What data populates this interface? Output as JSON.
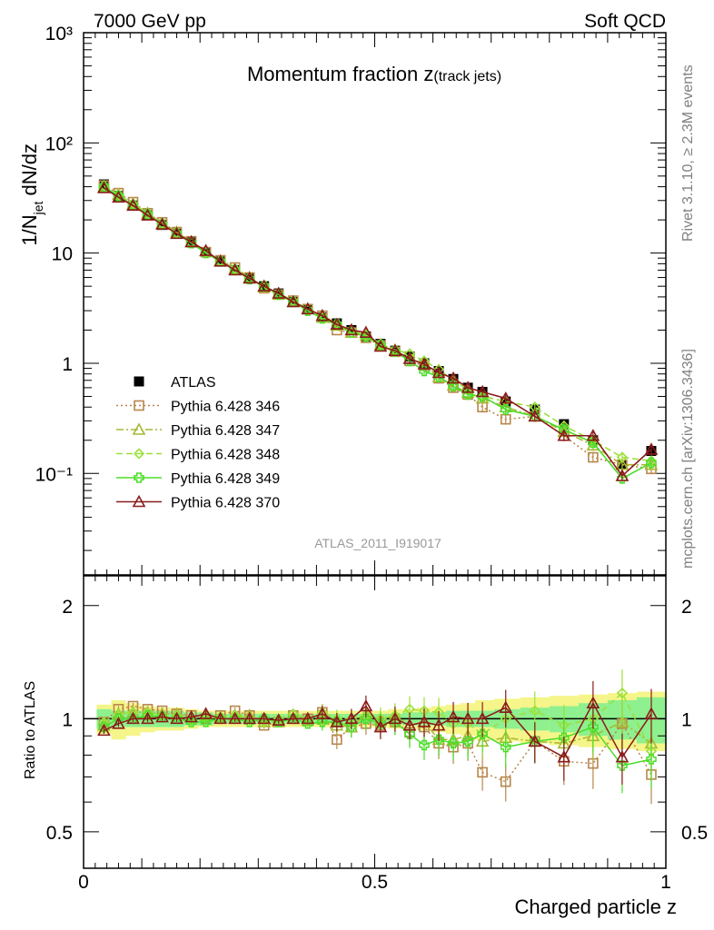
{
  "header": {
    "energy_label": "7000 GeV pp",
    "process_label": "Soft QCD",
    "title_main": "Momentum fraction ",
    "title_var": "z",
    "title_sub": "(track jets)",
    "side_rivet": "Rivet 3.1.10, ≥ 2.3M events",
    "side_source": "mcplots.cern.ch [arXiv:1306.3436]",
    "analysis_id": "ATLAS_2011_I919017"
  },
  "chart_data": [
    {
      "type": "scatter",
      "panel": "main",
      "ylabel": "1/N_jet dN/dz",
      "ylabel_parts": {
        "base": "1/N",
        "sub": "jet",
        "tail": " dN/dz"
      },
      "log_y": true,
      "xlim": [
        0,
        1
      ],
      "ylim": [
        0.012,
        1000
      ],
      "y_tick_labels": [
        "10⁻¹",
        "1",
        "10",
        "10²",
        "10³"
      ],
      "legend_position": "left-middle",
      "x": [
        0.035,
        0.06,
        0.085,
        0.11,
        0.135,
        0.16,
        0.185,
        0.21,
        0.235,
        0.26,
        0.285,
        0.31,
        0.335,
        0.36,
        0.385,
        0.41,
        0.435,
        0.46,
        0.485,
        0.51,
        0.535,
        0.56,
        0.585,
        0.61,
        0.635,
        0.66,
        0.685,
        0.725,
        0.775,
        0.825,
        0.875,
        0.925,
        0.975
      ],
      "series": [
        {
          "name": "ATLAS",
          "color": "#000000",
          "marker": "square-filled",
          "line": "none",
          "values": [
            42,
            33,
            27,
            22,
            18,
            15,
            12.5,
            10.2,
            8.4,
            7.0,
            5.9,
            5.0,
            4.3,
            3.6,
            3.1,
            2.6,
            2.3,
            2.0,
            1.75,
            1.5,
            1.3,
            1.15,
            1.0,
            0.85,
            0.72,
            0.6,
            0.55,
            0.45,
            0.38,
            0.28,
            0.2,
            0.12,
            0.16
          ]
        },
        {
          "name": "Pythia 6.428 346",
          "color": "#b8864b",
          "marker": "square-open",
          "line": "dotted",
          "values": [
            41,
            35,
            29,
            23,
            19,
            15.5,
            12.8,
            10.2,
            8.6,
            7.4,
            6.0,
            4.8,
            4.2,
            3.7,
            3.1,
            2.7,
            2.0,
            1.9,
            1.7,
            1.45,
            1.27,
            1.05,
            0.95,
            0.73,
            0.6,
            0.52,
            0.4,
            0.31,
            0.33,
            0.22,
            0.14,
            0.12,
            0.11
          ]
        },
        {
          "name": "Pythia 6.428 347",
          "color": "#a8b832",
          "marker": "triangle-open",
          "line": "dashdot",
          "values": [
            40,
            34,
            28,
            23,
            18.5,
            15.5,
            12.6,
            10.4,
            8.5,
            7.2,
            6.0,
            4.9,
            4.2,
            3.6,
            3.1,
            2.6,
            2.2,
            1.9,
            1.8,
            1.48,
            1.32,
            1.1,
            0.98,
            0.75,
            0.63,
            0.54,
            0.48,
            0.4,
            0.33,
            0.24,
            0.18,
            0.12,
            0.12
          ]
        },
        {
          "name": "Pythia 6.428 348",
          "color": "#9ce03c",
          "marker": "diamond-open",
          "line": "dashed",
          "values": [
            41,
            34,
            28,
            23,
            18.5,
            15.3,
            12.4,
            10.2,
            8.5,
            7.2,
            5.9,
            4.9,
            4.3,
            3.7,
            3.1,
            2.7,
            2.3,
            2.0,
            1.8,
            1.5,
            1.32,
            1.22,
            1.05,
            0.88,
            0.7,
            0.58,
            0.5,
            0.45,
            0.4,
            0.27,
            0.2,
            0.14,
            0.13
          ]
        },
        {
          "name": "Pythia 6.428 349",
          "color": "#4ddd2a",
          "marker": "cross",
          "line": "solid",
          "values": [
            40,
            33,
            27,
            22.5,
            18.2,
            15.0,
            12.3,
            10.0,
            8.4,
            7.0,
            5.8,
            5.0,
            4.2,
            3.6,
            3.0,
            2.55,
            2.25,
            1.9,
            1.75,
            1.46,
            1.28,
            1.05,
            0.85,
            0.75,
            0.62,
            0.52,
            0.5,
            0.38,
            0.33,
            0.25,
            0.19,
            0.09,
            0.125
          ]
        },
        {
          "name": "Pythia 6.428 370",
          "color": "#8b1a1a",
          "marker": "triangle-open",
          "line": "solid",
          "values": [
            39,
            32,
            27,
            22,
            18.2,
            15.0,
            12.6,
            10.5,
            8.4,
            7.0,
            5.9,
            5.0,
            4.3,
            3.6,
            3.1,
            2.7,
            2.25,
            2.0,
            1.9,
            1.42,
            1.3,
            1.1,
            0.98,
            0.82,
            0.73,
            0.6,
            0.55,
            0.48,
            0.33,
            0.22,
            0.22,
            0.095,
            0.165
          ]
        }
      ]
    },
    {
      "type": "line",
      "panel": "ratio",
      "xlabel": "Charged particle z",
      "ylabel": "Ratio to ATLAS",
      "log_y": true,
      "xlim": [
        0,
        1
      ],
      "ylim": [
        0.4,
        2.4
      ],
      "x_tick_labels": [
        "0",
        "0.5",
        "1"
      ],
      "y_tick_labels": [
        "0.5",
        "1",
        "2"
      ],
      "band_colors": {
        "stat": "#8ef08e",
        "total": "#f5f58a"
      },
      "band_stat": [
        0.06,
        0.05,
        0.05,
        0.05,
        0.05,
        0.05,
        0.04,
        0.04,
        0.03,
        0.03,
        0.03,
        0.03,
        0.03,
        0.03,
        0.03,
        0.03,
        0.03,
        0.03,
        0.03,
        0.03,
        0.03,
        0.04,
        0.04,
        0.04,
        0.05,
        0.05,
        0.05,
        0.06,
        0.07,
        0.08,
        0.1,
        0.12,
        0.14
      ],
      "band_total": [
        0.09,
        0.12,
        0.1,
        0.08,
        0.07,
        0.07,
        0.06,
        0.05,
        0.05,
        0.05,
        0.05,
        0.05,
        0.05,
        0.05,
        0.05,
        0.05,
        0.05,
        0.05,
        0.05,
        0.05,
        0.06,
        0.06,
        0.07,
        0.08,
        0.09,
        0.1,
        0.12,
        0.13,
        0.14,
        0.15,
        0.16,
        0.17,
        0.18
      ],
      "series": [
        {
          "name": "Pythia 6.428 346",
          "values": [
            0.98,
            1.06,
            1.08,
            1.06,
            1.05,
            1.03,
            1.02,
            1.0,
            1.02,
            1.05,
            1.02,
            0.96,
            0.98,
            1.02,
            1.0,
            1.04,
            0.88,
            0.95,
            0.97,
            0.96,
            0.98,
            0.92,
            0.95,
            0.86,
            0.84,
            0.86,
            0.72,
            0.68,
            0.87,
            0.77,
            0.76,
            0.97,
            0.71
          ]
        },
        {
          "name": "Pythia 6.428 347",
          "values": [
            0.96,
            1.03,
            1.04,
            1.04,
            1.03,
            1.03,
            1.01,
            1.02,
            1.01,
            1.02,
            1.02,
            0.98,
            0.98,
            1.0,
            0.99,
            1.0,
            0.96,
            0.95,
            1.03,
            0.99,
            1.02,
            0.96,
            0.98,
            0.88,
            0.88,
            0.9,
            0.87,
            0.89,
            0.87,
            0.86,
            0.9,
            0.98,
            0.86
          ]
        },
        {
          "name": "Pythia 6.428 348",
          "values": [
            0.98,
            1.03,
            1.04,
            1.04,
            1.02,
            1.02,
            0.99,
            1.0,
            1.01,
            1.02,
            1.0,
            0.98,
            1.0,
            1.03,
            1.0,
            1.04,
            1.0,
            1.0,
            1.02,
            1.0,
            1.02,
            1.06,
            1.05,
            1.04,
            0.97,
            0.97,
            0.91,
            1.0,
            1.05,
            0.96,
            1.0,
            1.17,
            0.82
          ]
        },
        {
          "name": "Pythia 6.428 349",
          "values": [
            0.95,
            1.0,
            1.0,
            1.02,
            1.01,
            1.0,
            0.98,
            0.98,
            1.0,
            1.0,
            0.98,
            1.0,
            0.98,
            1.0,
            0.97,
            0.98,
            0.98,
            0.95,
            1.0,
            0.97,
            0.98,
            0.91,
            0.85,
            0.88,
            0.86,
            0.87,
            0.91,
            0.84,
            0.87,
            0.89,
            0.95,
            0.75,
            0.78
          ]
        },
        {
          "name": "Pythia 6.428 370",
          "values": [
            0.93,
            0.97,
            1.0,
            1.0,
            1.01,
            1.0,
            1.01,
            1.03,
            1.0,
            1.0,
            1.0,
            1.0,
            0.99,
            1.0,
            1.0,
            1.03,
            0.98,
            1.0,
            1.08,
            0.95,
            1.0,
            0.96,
            0.98,
            0.96,
            1.01,
            1.0,
            1.0,
            1.07,
            0.87,
            0.79,
            1.1,
            0.79,
            1.03
          ]
        }
      ]
    }
  ]
}
